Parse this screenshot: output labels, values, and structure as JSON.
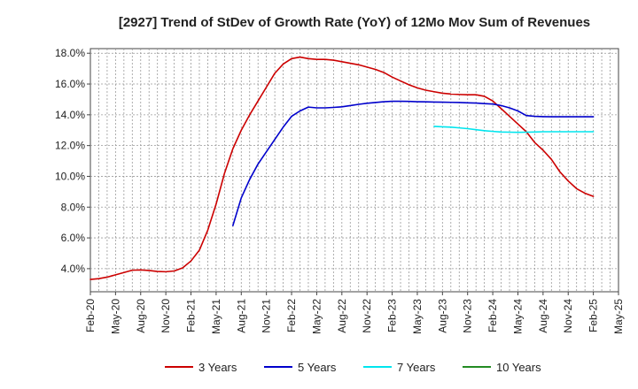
{
  "chart_data": {
    "type": "line",
    "title": "[2927]  Trend of StDev of Growth Rate (YoY) of 12Mo Mov Sum of Revenues",
    "xlabel": "",
    "ylabel": "",
    "ylim": [
      2.5,
      18.3
    ],
    "y_ticks": [
      4.0,
      6.0,
      8.0,
      10.0,
      12.0,
      14.0,
      16.0,
      18.0
    ],
    "y_tick_labels": [
      "4.0%",
      "6.0%",
      "8.0%",
      "10.0%",
      "12.0%",
      "14.0%",
      "16.0%",
      "18.0%"
    ],
    "x_range_months": [
      0,
      63
    ],
    "x_ticks": [
      0,
      3,
      6,
      9,
      12,
      15,
      18,
      21,
      24,
      27,
      30,
      33,
      36,
      39,
      42,
      45,
      48,
      51,
      54,
      57,
      60,
      63
    ],
    "x_tick_labels": [
      "Feb-20",
      "May-20",
      "Aug-20",
      "Nov-20",
      "Feb-21",
      "May-21",
      "Aug-21",
      "Nov-21",
      "Feb-22",
      "May-22",
      "Aug-22",
      "Nov-22",
      "Feb-23",
      "May-23",
      "Aug-23",
      "Nov-23",
      "Feb-24",
      "May-24",
      "Aug-24",
      "Nov-24",
      "Feb-25",
      "May-25"
    ],
    "grid": true,
    "legend_position": "bottom",
    "series": [
      {
        "name": "3 Years",
        "color": "#cc0000",
        "x": [
          0,
          1,
          2,
          3,
          4,
          5,
          6,
          7,
          8,
          9,
          10,
          11,
          12,
          13,
          14,
          15,
          16,
          17,
          18,
          19,
          20,
          21,
          22,
          23,
          24,
          25,
          26,
          27,
          28,
          29,
          30,
          31,
          32,
          33,
          34,
          35,
          36,
          37,
          38,
          39,
          40,
          41,
          42,
          43,
          44,
          45,
          46,
          47,
          48,
          49,
          50,
          51,
          52,
          53,
          54,
          55,
          56,
          57,
          58,
          59,
          60
        ],
        "values": [
          3.3,
          3.35,
          3.45,
          3.6,
          3.75,
          3.9,
          3.92,
          3.88,
          3.82,
          3.8,
          3.85,
          4.05,
          4.5,
          5.2,
          6.5,
          8.2,
          10.2,
          11.8,
          13.0,
          14.0,
          14.9,
          15.8,
          16.7,
          17.3,
          17.65,
          17.75,
          17.65,
          17.6,
          17.6,
          17.55,
          17.45,
          17.35,
          17.25,
          17.1,
          16.95,
          16.75,
          16.45,
          16.2,
          15.95,
          15.75,
          15.6,
          15.5,
          15.4,
          15.35,
          15.32,
          15.3,
          15.3,
          15.2,
          14.9,
          14.4,
          13.9,
          13.4,
          12.9,
          12.2,
          11.7,
          11.1,
          10.3,
          9.7,
          9.2,
          8.9,
          8.7
        ]
      },
      {
        "name": "5 Years",
        "color": "#0000cc",
        "x": [
          17,
          18,
          19,
          20,
          21,
          22,
          23,
          24,
          25,
          26,
          27,
          28,
          29,
          30,
          31,
          32,
          33,
          34,
          35,
          36,
          37,
          38,
          39,
          40,
          41,
          42,
          43,
          44,
          45,
          46,
          47,
          48,
          49,
          50,
          51,
          52,
          53,
          54,
          55,
          56,
          57,
          58,
          59,
          60
        ],
        "values": [
          6.8,
          8.6,
          9.8,
          10.8,
          11.6,
          12.4,
          13.2,
          13.9,
          14.25,
          14.5,
          14.45,
          14.45,
          14.48,
          14.52,
          14.6,
          14.68,
          14.75,
          14.8,
          14.85,
          14.88,
          14.88,
          14.87,
          14.85,
          14.84,
          14.83,
          14.82,
          14.81,
          14.8,
          14.78,
          14.76,
          14.73,
          14.7,
          14.6,
          14.45,
          14.25,
          13.95,
          13.9,
          13.88,
          13.87,
          13.87,
          13.87,
          13.87,
          13.87,
          13.87
        ]
      },
      {
        "name": "7 Years",
        "color": "#00e5ee",
        "x": [
          41,
          42,
          43,
          44,
          45,
          46,
          47,
          48,
          49,
          50,
          51,
          52,
          53,
          54,
          55,
          56,
          57,
          58,
          59,
          60
        ],
        "values": [
          13.25,
          13.22,
          13.2,
          13.15,
          13.1,
          13.03,
          12.97,
          12.92,
          12.88,
          12.87,
          12.86,
          12.87,
          12.88,
          12.9,
          12.9,
          12.9,
          12.9,
          12.9,
          12.9,
          12.9
        ]
      },
      {
        "name": "10 Years",
        "color": "#228b22",
        "x": [],
        "values": []
      }
    ]
  }
}
